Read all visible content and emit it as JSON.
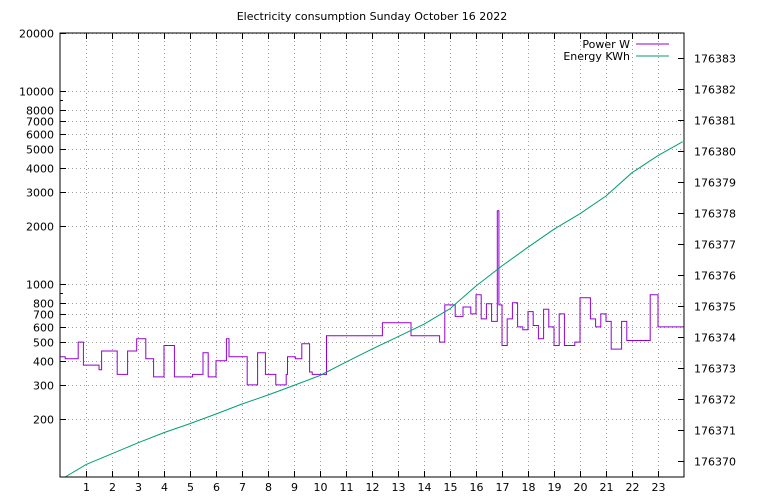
{
  "chart_data": {
    "type": "line",
    "title": "Electricity consumption Sunday October 16 2022",
    "xlabel": "",
    "ylabel_left": "",
    "ylabel_right": "",
    "x_ticks": [
      1,
      2,
      3,
      4,
      5,
      6,
      7,
      8,
      9,
      10,
      11,
      12,
      13,
      14,
      15,
      16,
      17,
      18,
      19,
      20,
      21,
      22,
      23
    ],
    "xlim": [
      0,
      24
    ],
    "y_left": {
      "scale": "log",
      "ylim": [
        100,
        20000
      ],
      "tick_labels": [
        "20000",
        "10000",
        "8000",
        "7000",
        "6000",
        "5000",
        "4000",
        "3000",
        "2000",
        "1000",
        "800",
        "700",
        "600",
        "500",
        "400",
        "300",
        "200"
      ],
      "tick_values": [
        20000,
        10000,
        8000,
        7000,
        6000,
        5000,
        4000,
        3000,
        2000,
        1000,
        800,
        700,
        600,
        500,
        400,
        300,
        200
      ]
    },
    "y_right": {
      "scale": "linear",
      "ylim": [
        176369.5,
        176383.8
      ],
      "tick_labels": [
        "176383",
        "176382",
        "176381",
        "176380",
        "176379",
        "176378",
        "176377",
        "176376",
        "176375",
        "176374",
        "176373",
        "176372",
        "176371",
        "176370"
      ],
      "tick_values": [
        176383,
        176382,
        176381,
        176380,
        176379,
        176378,
        176377,
        176376,
        176375,
        176374,
        176373,
        176372,
        176371,
        176370
      ]
    },
    "grid": true,
    "legend": {
      "placement": "top-right"
    },
    "series": [
      {
        "name": "Power W",
        "axis": "left",
        "color": "#9400d3",
        "style": "steps",
        "x": [
          0,
          0.2,
          0.7,
          0.9,
          1.5,
          1.6,
          2.2,
          2.6,
          2.95,
          3.3,
          3.6,
          4.0,
          4.4,
          5.1,
          5.5,
          5.7,
          6.0,
          6.4,
          6.5,
          7.2,
          7.6,
          7.9,
          8.3,
          8.7,
          8.75,
          9.05,
          9.3,
          9.6,
          9.7,
          10.25,
          11.5,
          12.4,
          13.5,
          14.6,
          14.8,
          15.2,
          15.5,
          15.8,
          16.0,
          16.2,
          16.4,
          16.6,
          16.82,
          16.88,
          17.0,
          17.2,
          17.4,
          17.6,
          17.8,
          18.0,
          18.2,
          18.4,
          18.6,
          18.8,
          19.0,
          19.2,
          19.4,
          19.6,
          19.8,
          20.0,
          20.4,
          20.6,
          20.8,
          21.0,
          21.2,
          21.4,
          21.6,
          21.8,
          22.0,
          22.5,
          22.7,
          23.0,
          23.7,
          23.85
        ],
        "y": [
          420,
          410,
          500,
          380,
          360,
          450,
          340,
          450,
          520,
          410,
          330,
          480,
          330,
          340,
          440,
          330,
          400,
          520,
          420,
          300,
          440,
          340,
          300,
          340,
          420,
          410,
          490,
          350,
          340,
          540,
          540,
          630,
          540,
          500,
          780,
          680,
          760,
          700,
          880,
          660,
          790,
          640,
          2400,
          780,
          480,
          660,
          800,
          600,
          580,
          720,
          610,
          520,
          740,
          600,
          480,
          700,
          480,
          480,
          500,
          850,
          660,
          600,
          700,
          640,
          460,
          460,
          640,
          510,
          510,
          510,
          880,
          600,
          600,
          600
        ]
      },
      {
        "name": "Energy KWh",
        "axis": "right",
        "color": "#009e73",
        "style": "line",
        "x": [
          0.2,
          1,
          2,
          3,
          4,
          5,
          6,
          7,
          8,
          9,
          10,
          11,
          12,
          13,
          14,
          15,
          16,
          17,
          18,
          19,
          20,
          21,
          22,
          23,
          23.95
        ],
        "y": [
          176369.5,
          176369.9,
          176370.25,
          176370.6,
          176370.93,
          176371.22,
          176371.53,
          176371.85,
          176372.14,
          176372.45,
          176372.77,
          176373.2,
          176373.62,
          176374.02,
          176374.42,
          176374.92,
          176375.65,
          176376.3,
          176376.9,
          176377.48,
          176377.98,
          176378.55,
          176379.3,
          176379.85,
          176380.3
        ]
      }
    ]
  },
  "colors": {
    "power": "#9400d3",
    "energy": "#009e73",
    "grid": "#a0a0a0",
    "frame": "#000000"
  }
}
